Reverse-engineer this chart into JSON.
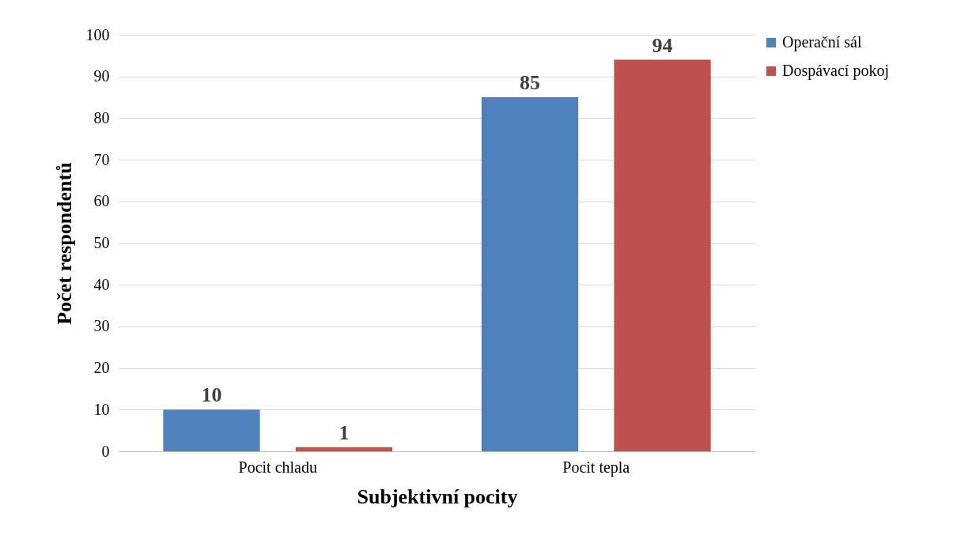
{
  "chart_data": {
    "type": "bar",
    "xlabel": "Subjektivní pocity",
    "ylabel": "Počet respondentů",
    "categories": [
      "Pocit chladu",
      "Pocit tepla"
    ],
    "series": [
      {
        "name": "Operační sál",
        "color": "#4f81bd",
        "values": [
          10,
          85
        ]
      },
      {
        "name": "Dospávací pokoj",
        "color": "#c0504d",
        "values": [
          1,
          94
        ]
      }
    ],
    "ylim": [
      0,
      100
    ],
    "yticks": [
      0,
      10,
      20,
      30,
      40,
      50,
      60,
      70,
      80,
      90,
      100
    ],
    "grid": "y",
    "legend": "right",
    "data_labels": true
  }
}
